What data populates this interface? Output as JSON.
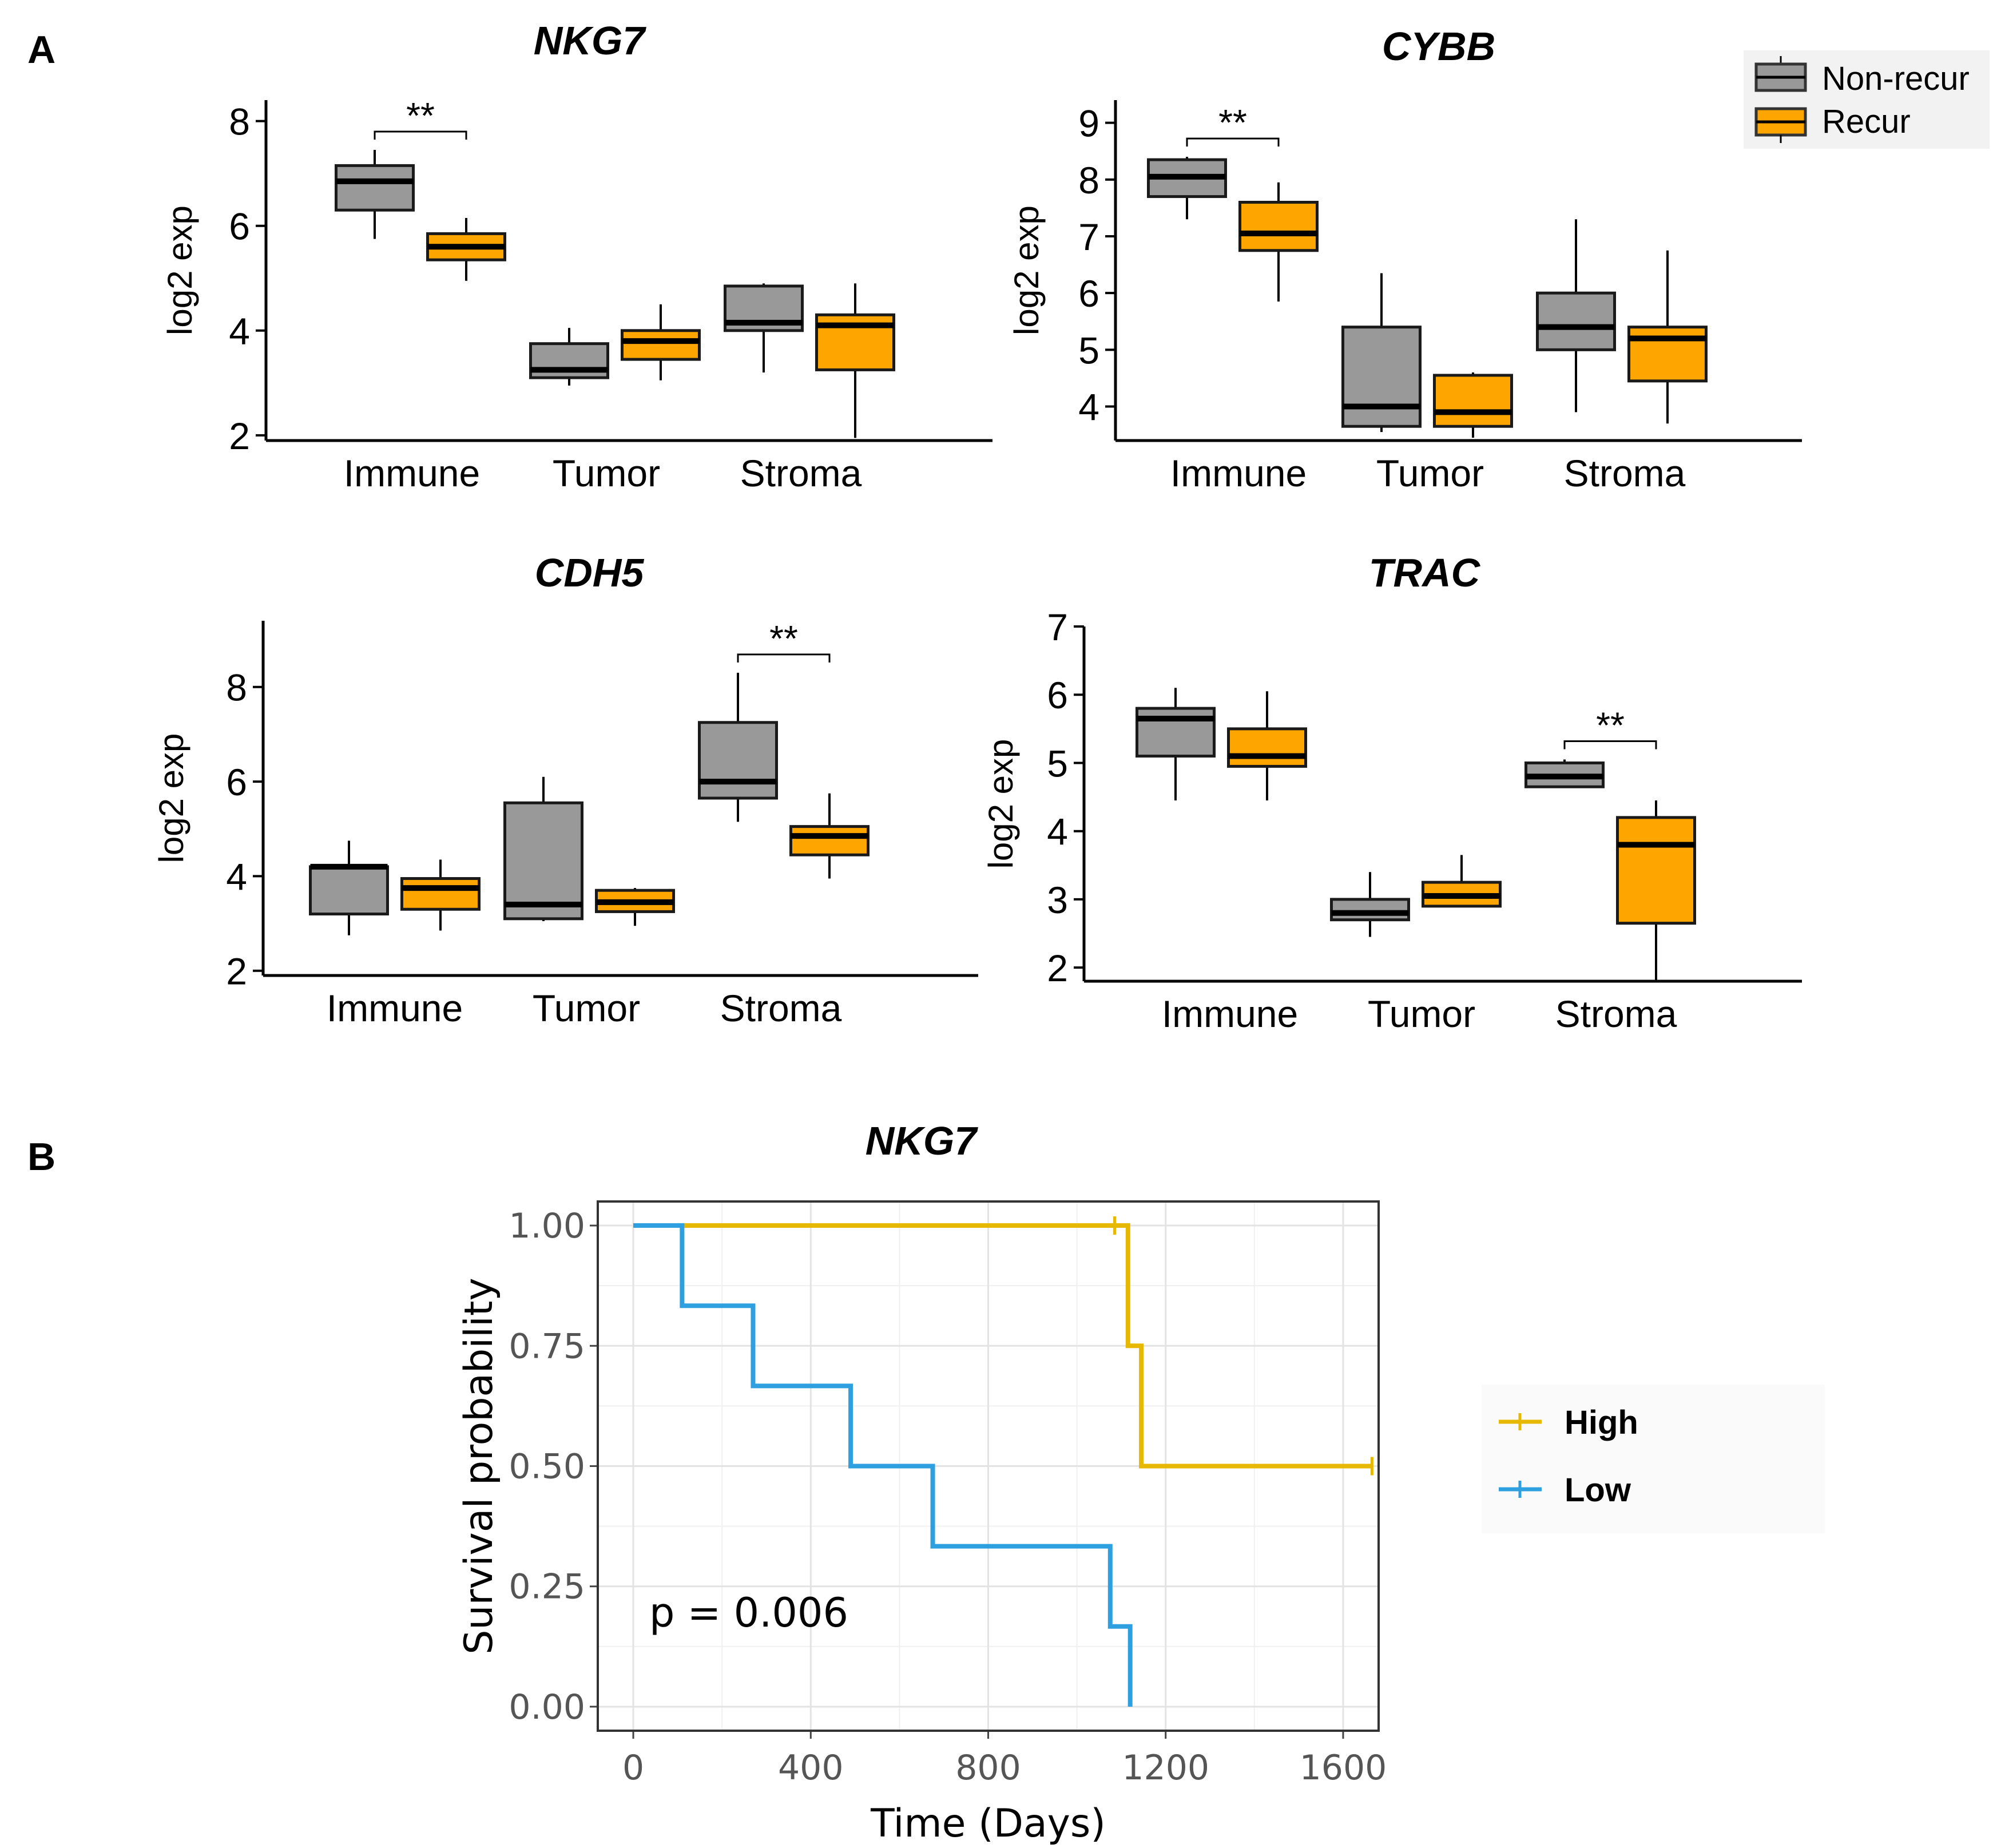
{
  "panel_labels": {
    "a": "A",
    "b": "B"
  },
  "legend_a": {
    "items": [
      {
        "label": "Non-recur",
        "color": "#999999"
      },
      {
        "label": "Recur",
        "color": "#FFA500"
      }
    ]
  },
  "chart_data": [
    {
      "type": "box",
      "title": "NKG7",
      "ylabel": "log2 exp",
      "categories": [
        "Immune",
        "Tumor",
        "Stroma"
      ],
      "yticks": [
        2,
        4,
        6,
        8
      ],
      "ylim": [
        1.9,
        8.4
      ],
      "series": [
        {
          "name": "Non-recur",
          "color": "#999999",
          "boxes": [
            {
              "min": 5.75,
              "q1": 6.3,
              "median": 6.85,
              "q3": 7.15,
              "max": 7.45
            },
            {
              "min": 2.95,
              "q1": 3.1,
              "median": 3.25,
              "q3": 3.75,
              "max": 4.05
            },
            {
              "min": 3.2,
              "q1": 4.0,
              "median": 4.15,
              "q3": 4.85,
              "max": 4.9
            }
          ]
        },
        {
          "name": "Recur",
          "color": "#FFA500",
          "boxes": [
            {
              "min": 4.95,
              "q1": 5.35,
              "median": 5.6,
              "q3": 5.85,
              "max": 6.15
            },
            {
              "min": 3.05,
              "q1": 3.45,
              "median": 3.8,
              "q3": 4.0,
              "max": 4.5
            },
            {
              "min": 1.95,
              "q1": 3.25,
              "median": 4.1,
              "q3": 4.3,
              "max": 4.9
            }
          ]
        }
      ],
      "significance": [
        {
          "category": "Immune",
          "label": "**"
        }
      ]
    },
    {
      "type": "box",
      "title": "CYBB",
      "ylabel": "log2 exp",
      "categories": [
        "Immune",
        "Tumor",
        "Stroma"
      ],
      "yticks": [
        4,
        5,
        6,
        7,
        8,
        9
      ],
      "ylim": [
        3.4,
        9.4
      ],
      "series": [
        {
          "name": "Non-recur",
          "color": "#999999",
          "boxes": [
            {
              "min": 7.3,
              "q1": 7.7,
              "median": 8.05,
              "q3": 8.35,
              "max": 8.4
            },
            {
              "min": 3.55,
              "q1": 3.65,
              "median": 4.0,
              "q3": 5.4,
              "max": 6.35
            },
            {
              "min": 3.9,
              "q1": 5.0,
              "median": 5.4,
              "q3": 6.0,
              "max": 7.3
            }
          ]
        },
        {
          "name": "Recur",
          "color": "#FFA500",
          "boxes": [
            {
              "min": 5.85,
              "q1": 6.75,
              "median": 7.05,
              "q3": 7.6,
              "max": 7.95
            },
            {
              "min": 3.45,
              "q1": 3.65,
              "median": 3.9,
              "q3": 4.55,
              "max": 4.6
            },
            {
              "min": 3.7,
              "q1": 4.45,
              "median": 5.2,
              "q3": 5.4,
              "max": 6.75
            }
          ]
        }
      ],
      "significance": [
        {
          "category": "Immune",
          "label": "**"
        }
      ]
    },
    {
      "type": "box",
      "title": "CDH5",
      "ylabel": "log2 exp",
      "categories": [
        "Immune",
        "Tumor",
        "Stroma"
      ],
      "yticks": [
        2,
        4,
        6,
        8
      ],
      "ylim": [
        1.9,
        9.4
      ],
      "series": [
        {
          "name": "Non-recur",
          "color": "#999999",
          "boxes": [
            {
              "min": 2.75,
              "q1": 3.2,
              "median": 4.2,
              "q3": 4.2,
              "max": 4.75
            },
            {
              "min": 3.05,
              "q1": 3.1,
              "median": 3.4,
              "q3": 5.55,
              "max": 6.1
            },
            {
              "min": 5.15,
              "q1": 5.65,
              "median": 6.0,
              "q3": 7.25,
              "max": 8.3
            }
          ]
        },
        {
          "name": "Recur",
          "color": "#FFA500",
          "boxes": [
            {
              "min": 2.85,
              "q1": 3.3,
              "median": 3.75,
              "q3": 3.95,
              "max": 4.35
            },
            {
              "min": 2.95,
              "q1": 3.25,
              "median": 3.45,
              "q3": 3.7,
              "max": 3.75
            },
            {
              "min": 3.95,
              "q1": 4.45,
              "median": 4.85,
              "q3": 5.05,
              "max": 5.75
            }
          ]
        }
      ],
      "significance": [
        {
          "category": "Stroma",
          "label": "**"
        }
      ]
    },
    {
      "type": "box",
      "title": "TRAC",
      "ylabel": "log2 exp",
      "categories": [
        "Immune",
        "Tumor",
        "Stroma"
      ],
      "yticks": [
        2,
        3,
        4,
        5,
        6,
        7
      ],
      "ylim": [
        1.8,
        7.0
      ],
      "series": [
        {
          "name": "Non-recur",
          "color": "#999999",
          "boxes": [
            {
              "min": 4.45,
              "q1": 5.1,
              "median": 5.65,
              "q3": 5.8,
              "max": 6.1
            },
            {
              "min": 2.45,
              "q1": 2.7,
              "median": 2.8,
              "q3": 3.0,
              "max": 3.4
            },
            {
              "min": 4.65,
              "q1": 4.65,
              "median": 4.8,
              "q3": 5.0,
              "max": 5.05
            }
          ]
        },
        {
          "name": "Recur",
          "color": "#FFA500",
          "boxes": [
            {
              "min": 4.45,
              "q1": 4.95,
              "median": 5.1,
              "q3": 5.5,
              "max": 6.05
            },
            {
              "min": 2.9,
              "q1": 2.9,
              "median": 3.05,
              "q3": 3.25,
              "max": 3.65
            },
            {
              "min": 1.8,
              "q1": 2.65,
              "median": 3.8,
              "q3": 4.2,
              "max": 4.45
            }
          ]
        }
      ],
      "significance": [
        {
          "category": "Stroma",
          "label": "**"
        }
      ]
    },
    {
      "type": "line",
      "subtype": "kaplan-meier",
      "title": "NKG7",
      "xlabel": "Time (Days)",
      "ylabel": "Survival probability",
      "xlim": [
        -80,
        1680
      ],
      "ylim": [
        -0.05,
        1.05
      ],
      "xticks": [
        0,
        400,
        800,
        1200,
        1600
      ],
      "yticks": [
        "0.00",
        "0.25",
        "0.50",
        "0.75",
        "1.00"
      ],
      "annotation": "p = 0.006",
      "series": [
        {
          "name": "High",
          "color": "#E7B800",
          "steps": [
            [
              0,
              1.0
            ],
            [
              1115,
              1.0
            ],
            [
              1115,
              0.75
            ],
            [
              1145,
              0.75
            ],
            [
              1145,
              0.5
            ],
            [
              1665,
              0.5
            ]
          ],
          "censors": [
            [
              1085,
              1.0
            ],
            [
              1665,
              0.5
            ]
          ]
        },
        {
          "name": "Low",
          "color": "#2E9FDF",
          "steps": [
            [
              0,
              1.0
            ],
            [
              110,
              1.0
            ],
            [
              110,
              0.8333
            ],
            [
              270,
              0.8333
            ],
            [
              270,
              0.6667
            ],
            [
              490,
              0.6667
            ],
            [
              490,
              0.5
            ],
            [
              675,
              0.5
            ],
            [
              675,
              0.3333
            ],
            [
              1075,
              0.3333
            ],
            [
              1075,
              0.1667
            ],
            [
              1120,
              0.1667
            ],
            [
              1120,
              0.0
            ]
          ],
          "censors": []
        }
      ]
    }
  ]
}
